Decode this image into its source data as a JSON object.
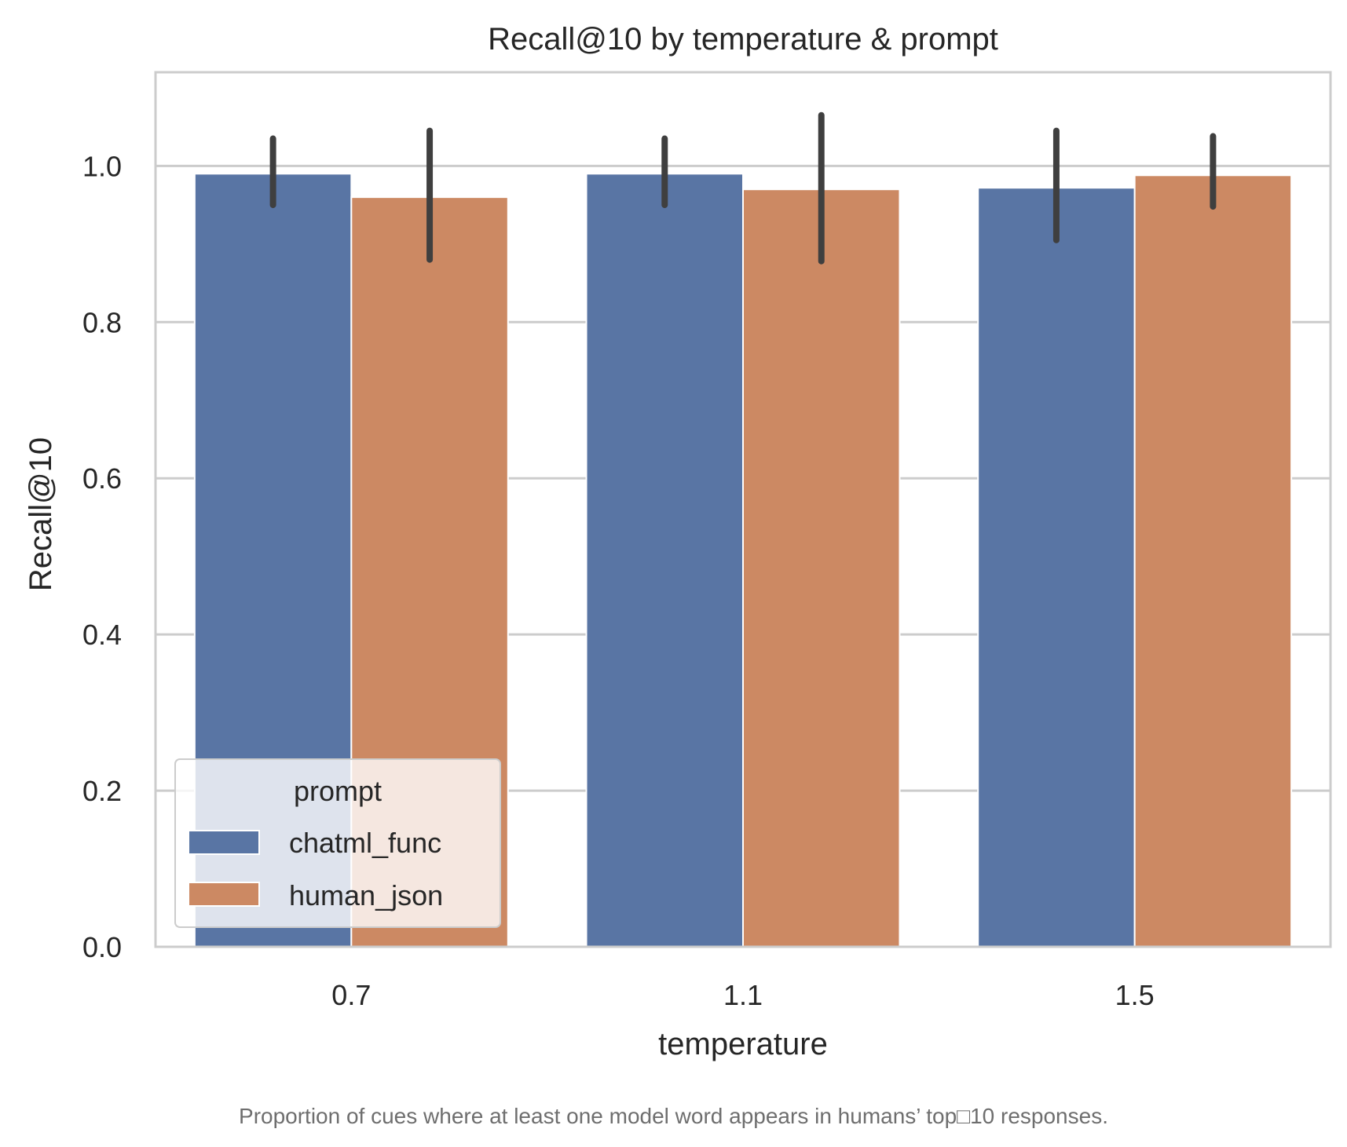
{
  "chart_data": {
    "type": "bar",
    "title": "Recall@10 by temperature & prompt",
    "xlabel": "temperature",
    "ylabel": "Recall@10",
    "categories": [
      "0.7",
      "1.1",
      "1.5"
    ],
    "ylim": [
      0,
      1.12
    ],
    "yticks": [
      "0.0",
      "0.2",
      "0.4",
      "0.6",
      "0.8",
      "1.0"
    ],
    "grid": true,
    "legend": {
      "title": "prompt",
      "placement": "lower-left"
    },
    "series": [
      {
        "name": "chatml_func",
        "color": "#5975a4",
        "values": [
          0.99,
          0.99,
          0.972
        ],
        "error_low": [
          0.95,
          0.95,
          0.905
        ],
        "error_high": [
          1.035,
          1.035,
          1.045
        ]
      },
      {
        "name": "human_json",
        "color": "#cc8963",
        "values": [
          0.96,
          0.97,
          0.988
        ],
        "error_low": [
          0.88,
          0.878,
          0.948
        ],
        "error_high": [
          1.045,
          1.065,
          1.038
        ]
      }
    ],
    "error_bar_color": "#3f3f3f"
  },
  "caption": "Proportion of cues where at least one model word appears in humans’ top□10 responses."
}
